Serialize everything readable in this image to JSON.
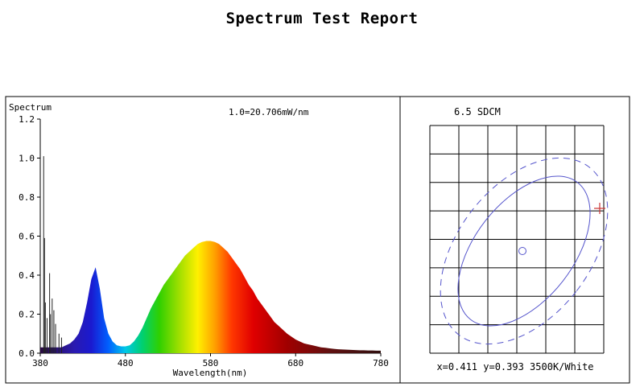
{
  "report_title": "Spectrum Test Report",
  "chart_data": [
    {
      "type": "area",
      "panel": "spectrum",
      "ylabel": "Spectrum",
      "xlabel": "Wavelength(nm)",
      "annotation": "1.0=20.706mW/nm",
      "xlim": [
        380,
        780
      ],
      "ylim": [
        0,
        1.2
      ],
      "x_ticks": [
        380,
        480,
        580,
        680,
        780
      ],
      "y_ticks": [
        0.0,
        0.2,
        0.4,
        0.6,
        0.8,
        1.0,
        1.2
      ],
      "x": [
        380,
        385,
        390,
        395,
        400,
        405,
        410,
        415,
        420,
        425,
        430,
        435,
        440,
        445,
        450,
        455,
        460,
        465,
        470,
        475,
        480,
        485,
        490,
        495,
        500,
        505,
        510,
        515,
        520,
        525,
        530,
        535,
        540,
        545,
        550,
        555,
        560,
        565,
        570,
        575,
        580,
        585,
        590,
        595,
        600,
        605,
        610,
        615,
        620,
        625,
        630,
        635,
        640,
        645,
        650,
        655,
        660,
        665,
        670,
        675,
        680,
        685,
        690,
        695,
        700,
        705,
        710,
        715,
        720,
        725,
        730,
        735,
        740,
        745,
        750,
        755,
        760,
        765,
        770,
        775,
        780
      ],
      "values": [
        0.03,
        0.03,
        0.03,
        0.03,
        0.03,
        0.03,
        0.04,
        0.05,
        0.07,
        0.1,
        0.16,
        0.26,
        0.38,
        0.44,
        0.33,
        0.18,
        0.1,
        0.06,
        0.04,
        0.035,
        0.035,
        0.04,
        0.06,
        0.09,
        0.13,
        0.18,
        0.23,
        0.27,
        0.31,
        0.35,
        0.38,
        0.41,
        0.44,
        0.47,
        0.5,
        0.52,
        0.54,
        0.56,
        0.57,
        0.575,
        0.575,
        0.57,
        0.56,
        0.54,
        0.52,
        0.49,
        0.46,
        0.43,
        0.39,
        0.35,
        0.32,
        0.28,
        0.25,
        0.22,
        0.19,
        0.16,
        0.14,
        0.12,
        0.1,
        0.085,
        0.07,
        0.06,
        0.05,
        0.045,
        0.04,
        0.035,
        0.03,
        0.028,
        0.025,
        0.022,
        0.02,
        0.019,
        0.018,
        0.017,
        0.016,
        0.015,
        0.015,
        0.014,
        0.014,
        0.013,
        0.013
      ],
      "spikes": [
        {
          "x": 384,
          "y": 1.01
        },
        {
          "x": 385,
          "y": 0.59
        },
        {
          "x": 386,
          "y": 0.26
        },
        {
          "x": 388,
          "y": 0.18
        },
        {
          "x": 391,
          "y": 0.41
        },
        {
          "x": 392,
          "y": 0.2
        },
        {
          "x": 394,
          "y": 0.28
        },
        {
          "x": 396,
          "y": 0.22
        },
        {
          "x": 398,
          "y": 0.15
        },
        {
          "x": 402,
          "y": 0.1
        },
        {
          "x": 405,
          "y": 0.08
        }
      ]
    },
    {
      "type": "scatter",
      "panel": "chromaticity",
      "title": "6.5 SDCM",
      "info": "x=0.411 y=0.393 3500K/White",
      "grid_cols": 6,
      "grid_rows": 8,
      "center_marker": "circle",
      "measured_marker": "plus",
      "measured_color": "#cc3333",
      "ellipse_color": "#5555cc"
    }
  ]
}
